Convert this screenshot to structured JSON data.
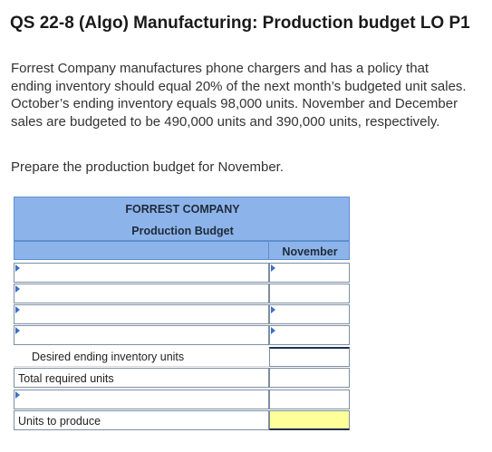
{
  "header": {
    "title": "QS 22-8 (Algo) Manufacturing: Production budget LO P1"
  },
  "problem": {
    "prompt": "Forrest Company manufactures phone chargers and has a policy that ending inventory should equal 20% of the next month’s budgeted unit sales. October’s ending inventory equals 98,000 units. November and December sales are budgeted to be 490,000 units and 390,000 units, respectively.",
    "instruction": "Prepare the production budget for November."
  },
  "budget": {
    "company": "FORREST COMPANY",
    "name": "Production Budget",
    "column_header": "November",
    "rows": [
      {
        "label": "",
        "value": ""
      },
      {
        "label": "",
        "value": ""
      },
      {
        "label": "",
        "value": ""
      },
      {
        "label": "",
        "value": ""
      },
      {
        "label": "Desired ending inventory units",
        "value": ""
      },
      {
        "label": "Total required units",
        "value": ""
      },
      {
        "label": "",
        "value": ""
      },
      {
        "label": "Units to produce",
        "value": ""
      }
    ]
  }
}
